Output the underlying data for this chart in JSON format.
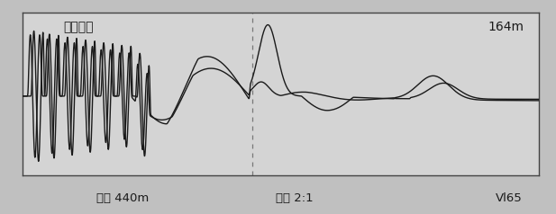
{
  "title_top_left": "低压脉冲",
  "title_top_right": "164m",
  "label_bottom_left": "范围 440m",
  "label_bottom_center": "比例 2:1",
  "label_bottom_right": "Vl65",
  "line_color": "#1a1a1a",
  "dashed_line_color": "#777777",
  "dashed_line_x": 0.445,
  "fig_bg_color": "#c0c0c0",
  "plot_bg_color": "#d4d4d4",
  "figsize": [
    6.17,
    2.38
  ],
  "dpi": 100
}
